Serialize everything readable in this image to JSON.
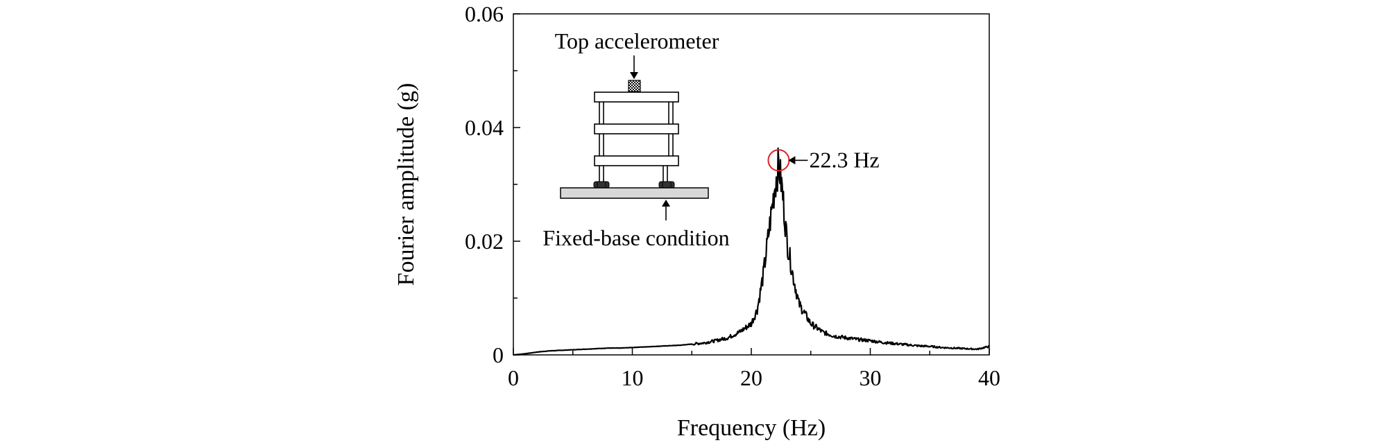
{
  "chart_data": {
    "type": "line",
    "xlabel": "Frequency (Hz)",
    "ylabel": "Fourier amplitude (g)",
    "xlim": [
      0,
      40
    ],
    "ylim": [
      0,
      0.06
    ],
    "x_ticks": [
      0,
      10,
      20,
      30,
      40
    ],
    "x_tick_labels": [
      "0",
      "10",
      "20",
      "30",
      "40"
    ],
    "y_ticks": [
      0,
      0.02,
      0.04,
      0.06
    ],
    "y_tick_labels": [
      "0",
      "0.02",
      "0.04",
      "0.06"
    ],
    "grid": false,
    "series": [
      {
        "color": "#000000",
        "x": [
          0,
          1,
          2,
          3,
          4,
          5,
          6,
          7,
          8,
          9,
          10,
          11,
          12,
          13,
          14,
          15,
          16,
          17,
          18,
          19,
          20,
          20.5,
          21,
          21.5,
          22,
          22.3,
          22.6,
          23,
          23.5,
          24,
          25,
          26,
          27,
          28,
          29,
          30,
          31,
          32,
          33,
          34,
          35,
          36,
          37,
          38,
          39,
          40
        ],
        "y": [
          0,
          0.0002,
          0.0005,
          0.0007,
          0.0008,
          0.0009,
          0.001,
          0.0011,
          0.0012,
          0.0012,
          0.0013,
          0.0014,
          0.0015,
          0.0016,
          0.0017,
          0.0019,
          0.0021,
          0.0025,
          0.003,
          0.004,
          0.0055,
          0.008,
          0.014,
          0.022,
          0.03,
          0.0335,
          0.029,
          0.02,
          0.014,
          0.009,
          0.0055,
          0.004,
          0.0033,
          0.003,
          0.0027,
          0.0025,
          0.0022,
          0.002,
          0.0018,
          0.0016,
          0.0015,
          0.0013,
          0.0012,
          0.0011,
          0.001,
          0.0015
        ]
      }
    ],
    "annotations": {
      "peak_label": "22.3 Hz",
      "peak_x": 22.3,
      "peak_y": 0.0335,
      "top_label": "Top accelerometer",
      "base_label": "Fixed-base condition"
    }
  }
}
